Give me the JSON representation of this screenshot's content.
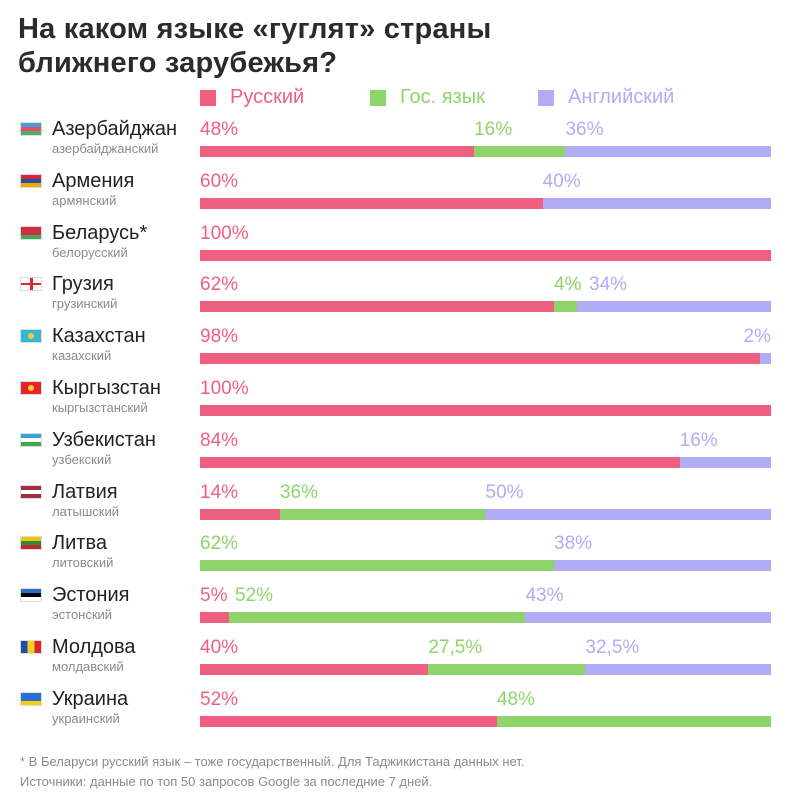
{
  "title_line1": "На каком языке «гуглят» страны",
  "title_line2": "ближнего зарубежья?",
  "colors": {
    "russian": "#ef5f80",
    "state": "#8fd46b",
    "english": "#b1acf5",
    "text_grey": "#8a8a8a"
  },
  "legend": [
    {
      "label": "Русский",
      "color": "#ef5f80"
    },
    {
      "label": "Гос. язык",
      "color": "#8fd46b"
    },
    {
      "label": "Английский",
      "color": "#b1acf5"
    }
  ],
  "chart_data": {
    "type": "bar",
    "stacked": true,
    "orientation": "horizontal",
    "series_names": [
      "Русский",
      "Гос. язык",
      "Английский"
    ],
    "rows": [
      {
        "country": "Азербайджан",
        "language": "азербайджанский",
        "flag": "azerbaijan-flag",
        "values": [
          48,
          16,
          36
        ],
        "labels": [
          "48%",
          "16%",
          "36%"
        ]
      },
      {
        "country": "Армения",
        "language": "армянский",
        "flag": "armenia-flag",
        "values": [
          60,
          0,
          40
        ],
        "labels": [
          "60%",
          "",
          "40%"
        ]
      },
      {
        "country": "Беларусь*",
        "language": "белорусский",
        "flag": "belarus-flag",
        "values": [
          100,
          0,
          0
        ],
        "labels": [
          "100%",
          "",
          ""
        ]
      },
      {
        "country": "Грузия",
        "language": "грузинский",
        "flag": "georgia-flag",
        "values": [
          62,
          4,
          34
        ],
        "labels": [
          "62%",
          "4%",
          "34%"
        ]
      },
      {
        "country": "Казахстан",
        "language": "казахский",
        "flag": "kazakhstan-flag",
        "values": [
          98,
          0,
          2
        ],
        "labels": [
          "98%",
          "",
          "2%"
        ]
      },
      {
        "country": "Кыргызстан",
        "language": "кыргызстанский",
        "flag": "kyrgyzstan-flag",
        "values": [
          100,
          0,
          0
        ],
        "labels": [
          "100%",
          "",
          ""
        ]
      },
      {
        "country": "Узбекистан",
        "language": "узбекский",
        "flag": "uzbekistan-flag",
        "values": [
          84,
          0,
          16
        ],
        "labels": [
          "84%",
          "",
          "16%"
        ]
      },
      {
        "country": "Латвия",
        "language": "латышский",
        "flag": "latvia-flag",
        "values": [
          14,
          36,
          50
        ],
        "labels": [
          "14%",
          "36%",
          "50%"
        ]
      },
      {
        "country": "Литва",
        "language": "литовский",
        "flag": "lithuania-flag",
        "values": [
          0,
          62,
          38
        ],
        "labels": [
          "",
          "62%",
          "38%"
        ]
      },
      {
        "country": "Эстония",
        "language": "эстонский",
        "flag": "estonia-flag",
        "values": [
          5,
          52,
          43
        ],
        "labels": [
          "5%",
          "52%",
          "43%"
        ]
      },
      {
        "country": "Молдова",
        "language": "молдавский",
        "flag": "moldova-flag",
        "values": [
          40,
          27.5,
          32.5
        ],
        "labels": [
          "40%",
          "27,5%",
          "32,5%"
        ]
      },
      {
        "country": "Украина",
        "language": "украинский",
        "flag": "ukraine-flag",
        "values": [
          52,
          48,
          0
        ],
        "labels": [
          "52%",
          "48%",
          ""
        ]
      }
    ]
  },
  "footer_line1": "* В Беларуси русский язык – тоже государственный. Для Таджикистана данных нет.",
  "footer_line2": "Источники: данные по топ 50 запросов Google за последние 7 дней."
}
